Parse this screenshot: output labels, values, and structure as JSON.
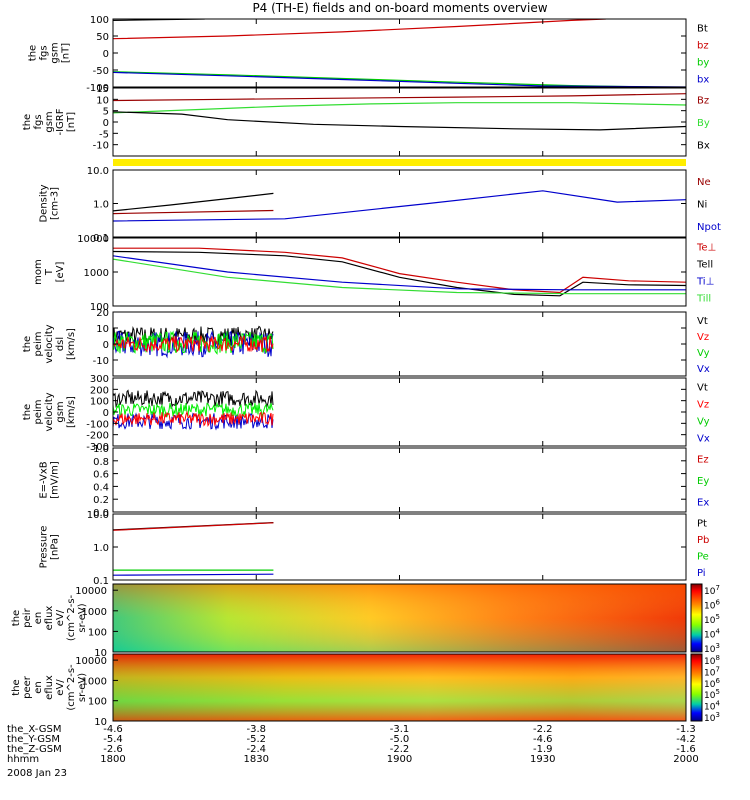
{
  "title": "P4 (TH-E) fields and on-board moments overview",
  "chart_data": {
    "type": "line",
    "title": "P4 (TH-E) fields and on-board moments overview",
    "x_axis": {
      "tick_labels": [
        "1800",
        "1830",
        "1900",
        "1930",
        "2000"
      ],
      "x_gsm": [
        "-4.6",
        "-3.8",
        "-3.1",
        "-2.2",
        "-1.3"
      ],
      "y_gsm": [
        "-5.4",
        "-5.2",
        "-5.0",
        "-4.6",
        "-4.2"
      ],
      "z_gsm": [
        "-2.6",
        "-2.4",
        "-2.2",
        "-1.9",
        "-1.6"
      ],
      "row_labels": [
        "the_X-GSM",
        "the_Y-GSM",
        "the_Z-GSM",
        "hhmm"
      ],
      "date": "2008 Jan 23"
    },
    "panels": [
      {
        "ylabel": [
          "the",
          "fgs",
          "gsm",
          "[nT]"
        ],
        "ylim": [
          -100,
          100
        ],
        "yticks": [
          "100",
          "50",
          "0",
          "-50",
          "-100"
        ],
        "series": [
          {
            "name": "Bt",
            "color": "#000000",
            "x": [
              0,
              0.08,
              0.16
            ],
            "y": [
              96,
              98,
              100
            ]
          },
          {
            "name": "bz",
            "color": "#cc0000",
            "x": [
              0,
              0.2,
              0.4,
              0.6,
              0.8,
              0.86
            ],
            "y": [
              42,
              50,
              62,
              78,
              96,
              100
            ]
          },
          {
            "name": "by",
            "color": "#00cc00",
            "x": [
              0,
              0.2,
              0.4,
              0.6,
              0.8,
              1.0
            ],
            "y": [
              -55,
              -64,
              -75,
              -86,
              -96,
              -102
            ]
          },
          {
            "name": "bx",
            "color": "#0000cc",
            "x": [
              0,
              0.2,
              0.4,
              0.6,
              0.75,
              1.0
            ],
            "y": [
              -57,
              -67,
              -78,
              -89,
              -97,
              -100
            ]
          }
        ]
      },
      {
        "ylabel": [
          "the",
          "fgs",
          "gsm",
          "-IGRF",
          "[nT]"
        ],
        "ylim": [
          -15,
          15
        ],
        "yticks": [
          "15",
          "10",
          "5",
          "0",
          "-5",
          "-10"
        ],
        "series": [
          {
            "name": "Bz",
            "color": "#990000",
            "x": [
              0,
              0.2,
              0.4,
              0.6,
              0.8,
              1.0
            ],
            "y": [
              9.5,
              10,
              10.5,
              11,
              11.5,
              12.5
            ]
          },
          {
            "name": "By",
            "color": "#33dd33",
            "x": [
              0,
              0.15,
              0.3,
              0.45,
              0.6,
              0.8,
              1.0
            ],
            "y": [
              4,
              5.5,
              7,
              8,
              8.5,
              8.5,
              7.5
            ]
          },
          {
            "name": "Bx",
            "color": "#000000",
            "x": [
              0,
              0.12,
              0.2,
              0.35,
              0.5,
              0.7,
              0.85,
              1.0
            ],
            "y": [
              4.5,
              3.5,
              1,
              -1,
              -2,
              -3,
              -3.5,
              -2
            ]
          }
        ]
      },
      {
        "ylabel": [
          "Density",
          "[cm-3]"
        ],
        "scale": "log",
        "ylim": [
          0.1,
          10
        ],
        "yticks": [
          "10.0",
          "1.0",
          "0.1"
        ],
        "series": [
          {
            "name": "Ne",
            "color": "#990000",
            "x": [
              0,
              0.28
            ],
            "y": [
              0.5,
              0.62
            ]
          },
          {
            "name": "Ni",
            "color": "#000000",
            "x": [
              0,
              0.1,
              0.2,
              0.28
            ],
            "y": [
              0.6,
              0.9,
              1.4,
              2.0
            ]
          },
          {
            "name": "Npot",
            "color": "#0000cc",
            "x": [
              0,
              0.3,
              0.55,
              0.75,
              0.88,
              1.0
            ],
            "y": [
              0.3,
              0.35,
              1.0,
              2.4,
              1.1,
              1.3
            ]
          }
        ]
      },
      {
        "ylabel": [
          "mom",
          "T",
          "[eV]"
        ],
        "scale": "log",
        "ylim": [
          100,
          10000
        ],
        "yticks": [
          "10000",
          "1000",
          "100"
        ],
        "series": [
          {
            "name": "Te⊥",
            "color": "#cc0000",
            "x": [
              0,
              0.15,
              0.3,
              0.4,
              0.5,
              0.6,
              0.7,
              0.78,
              0.82,
              0.9,
              1.0
            ],
            "y": [
              5000,
              5000,
              3800,
              2600,
              900,
              500,
              300,
              250,
              700,
              550,
              500
            ]
          },
          {
            "name": "Tell",
            "color": "#000000",
            "x": [
              0,
              0.15,
              0.3,
              0.4,
              0.5,
              0.6,
              0.7,
              0.78,
              0.82,
              0.9,
              1.0
            ],
            "y": [
              4000,
              3800,
              3000,
              2000,
              700,
              350,
              220,
              200,
              500,
              420,
              400
            ]
          },
          {
            "name": "Ti⊥",
            "color": "#0000cc",
            "x": [
              0,
              0.2,
              0.4,
              0.6,
              0.8,
              1.0
            ],
            "y": [
              3000,
              1000,
              500,
              320,
              300,
              300
            ]
          },
          {
            "name": "Till",
            "color": "#33dd33",
            "x": [
              0,
              0.2,
              0.4,
              0.6,
              0.8,
              1.0
            ],
            "y": [
              2400,
              700,
              350,
              250,
              230,
              230
            ]
          }
        ]
      },
      {
        "ylabel": [
          "the",
          "peim",
          "velocity",
          "dsl",
          "[km/s]"
        ],
        "ylim": [
          -20,
          20
        ],
        "yticks": [
          "20",
          "10",
          "0",
          "-10"
        ],
        "xend": 0.28,
        "noise_series": [
          {
            "name": "Vt",
            "color": "#000000",
            "center": 5,
            "amp": 6
          },
          {
            "name": "Vx",
            "color": "#0000cc",
            "center": 0,
            "amp": 8
          },
          {
            "name": "Vy",
            "color": "#00ee00",
            "center": 1,
            "amp": 7
          },
          {
            "name": "Vz",
            "color": "#ff0000",
            "center": 0,
            "amp": 5
          }
        ]
      },
      {
        "ylabel": [
          "the",
          "peim",
          "velocity",
          "gsm",
          "[km/s]"
        ],
        "ylim": [
          -300,
          300
        ],
        "yticks": [
          "300",
          "200",
          "100",
          "0",
          "-100",
          "-200",
          "-300"
        ],
        "xend": 0.28,
        "noise_series": [
          {
            "name": "Vt",
            "color": "#000000",
            "center": 120,
            "amp": 70
          },
          {
            "name": "Vx",
            "color": "#0000cc",
            "center": -80,
            "amp": 70
          },
          {
            "name": "Vy",
            "color": "#00ee00",
            "center": 20,
            "amp": 60
          },
          {
            "name": "Vz",
            "color": "#ff0000",
            "center": -60,
            "amp": 60
          }
        ]
      },
      {
        "ylabel": [
          "E=-VxB",
          "[mV/m]"
        ],
        "ylim": [
          0,
          1
        ],
        "yticks": [
          "1.0",
          "0.8",
          "0.6",
          "0.4",
          "0.2",
          "0.0"
        ],
        "series": []
      },
      {
        "ylabel": [
          "Pressure",
          "[nPa]"
        ],
        "scale": "log",
        "ylim": [
          0.1,
          10
        ],
        "yticks": [
          "10.0",
          "1.0",
          "0.1"
        ],
        "series": [
          {
            "name": "Pt",
            "color": "#000000",
            "x": [
              0,
              0.28
            ],
            "y": [
              3.3,
              5.5
            ]
          },
          {
            "name": "Pb",
            "color": "#cc0000",
            "x": [
              0,
              0.28
            ],
            "y": [
              3.2,
              5.4
            ]
          },
          {
            "name": "Pe",
            "color": "#00cc00",
            "x": [
              0,
              0.28
            ],
            "y": [
              0.2,
              0.2
            ]
          },
          {
            "name": "Pi",
            "color": "#0000cc",
            "x": [
              0,
              0.28
            ],
            "y": [
              0.14,
              0.15
            ]
          }
        ]
      },
      {
        "type": "heatmap",
        "ylabel": [
          "the",
          "peir",
          "en",
          "eflux",
          "eV/",
          "(cm^2-s-",
          "sr-eV)"
        ],
        "yticks": [
          "10000",
          "1000",
          "100",
          "10"
        ],
        "colorbar_ticks": [
          "10^7",
          "10^6",
          "10^5",
          "10^4",
          "10^3"
        ]
      },
      {
        "type": "heatmap",
        "ylabel": [
          "the",
          "peer",
          "en",
          "eflux",
          "eV/",
          "(cm^2-s-",
          "sr-eV)"
        ],
        "yticks": [
          "10000",
          "1000",
          "100",
          "10"
        ],
        "colorbar_ticks": [
          "10^8",
          "10^7",
          "10^6",
          "10^5",
          "10^4",
          "10^3"
        ]
      }
    ],
    "legends": [
      [
        {
          "name": "Bt",
          "color": "#000000"
        },
        {
          "name": "bz",
          "color": "#cc0000"
        },
        {
          "name": "by",
          "color": "#00cc00"
        },
        {
          "name": "bx",
          "color": "#0000cc"
        }
      ],
      [
        {
          "name": "Bz",
          "color": "#990000"
        },
        {
          "name": "By",
          "color": "#33dd33"
        },
        {
          "name": "Bx",
          "color": "#000000"
        }
      ],
      [
        {
          "name": "Ne",
          "color": "#990000"
        },
        {
          "name": "Ni",
          "color": "#000000"
        },
        {
          "name": "Npot",
          "color": "#0000cc"
        }
      ],
      [
        {
          "name": "Te⊥",
          "color": "#cc0000"
        },
        {
          "name": "Tell",
          "color": "#000000"
        },
        {
          "name": "Ti⊥",
          "color": "#0000cc"
        },
        {
          "name": "Till",
          "color": "#33dd33"
        }
      ],
      [
        {
          "name": "Vt",
          "color": "#000000"
        },
        {
          "name": "Vz",
          "color": "#ff0000"
        },
        {
          "name": "Vy",
          "color": "#00cc00"
        },
        {
          "name": "Vx",
          "color": "#0000cc"
        }
      ],
      [
        {
          "name": "Vt",
          "color": "#000000"
        },
        {
          "name": "Vz",
          "color": "#ff0000"
        },
        {
          "name": "Vy",
          "color": "#00cc00"
        },
        {
          "name": "Vx",
          "color": "#0000cc"
        }
      ],
      [
        {
          "name": "Ez",
          "color": "#cc0000"
        },
        {
          "name": "Ey",
          "color": "#00cc00"
        },
        {
          "name": "Ex",
          "color": "#0000cc"
        }
      ],
      [
        {
          "name": "Pt",
          "color": "#000000"
        },
        {
          "name": "Pb",
          "color": "#cc0000"
        },
        {
          "name": "Pe",
          "color": "#00cc00"
        },
        {
          "name": "Pi",
          "color": "#0000cc"
        }
      ]
    ]
  }
}
